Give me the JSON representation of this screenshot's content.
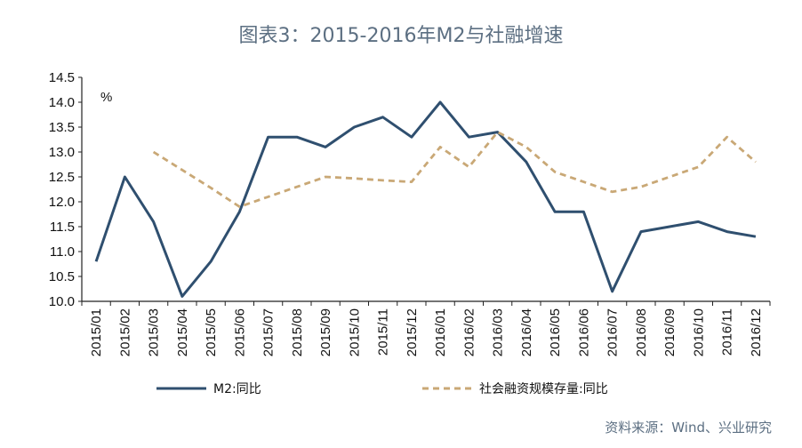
{
  "title": "图表3：2015-2016年M2与社融增速",
  "source": "资料来源：Wind、兴业研究",
  "chart_data": {
    "type": "line",
    "unit": "%",
    "ylim": [
      10.0,
      14.5
    ],
    "yticks": [
      "14.5",
      "14.0",
      "13.5",
      "13.0",
      "12.5",
      "12.0",
      "11.5",
      "11.0",
      "10.5",
      "10.0"
    ],
    "categories": [
      "2015/01",
      "2015/02",
      "2015/03",
      "2015/04",
      "2015/05",
      "2015/06",
      "2015/07",
      "2015/08",
      "2015/09",
      "2015/10",
      "2015/11",
      "2015/12",
      "2016/01",
      "2016/02",
      "2016/03",
      "2016/04",
      "2016/05",
      "2016/06",
      "2016/07",
      "2016/08",
      "2016/09",
      "2016/10",
      "2016/11",
      "2016/12"
    ],
    "series": [
      {
        "name": "M2:同比",
        "color": "#2f4f6f",
        "style": "solid",
        "values": [
          10.8,
          12.5,
          11.6,
          10.1,
          10.8,
          11.8,
          13.3,
          13.3,
          13.1,
          13.5,
          13.7,
          13.3,
          14.0,
          13.3,
          13.4,
          12.8,
          11.8,
          11.8,
          10.2,
          11.4,
          11.5,
          11.6,
          11.4,
          11.3
        ]
      },
      {
        "name": "社会融资规模存量:同比",
        "color": "#c9a876",
        "style": "dashed",
        "values": [
          null,
          null,
          13.0,
          12.64,
          12.28,
          11.9,
          12.1,
          12.3,
          12.5,
          12.47,
          12.43,
          12.4,
          13.1,
          12.7,
          13.4,
          13.1,
          12.6,
          12.4,
          12.2,
          12.3,
          12.5,
          12.7,
          13.3,
          12.8
        ]
      }
    ],
    "grid": false,
    "legend": "bottom"
  }
}
